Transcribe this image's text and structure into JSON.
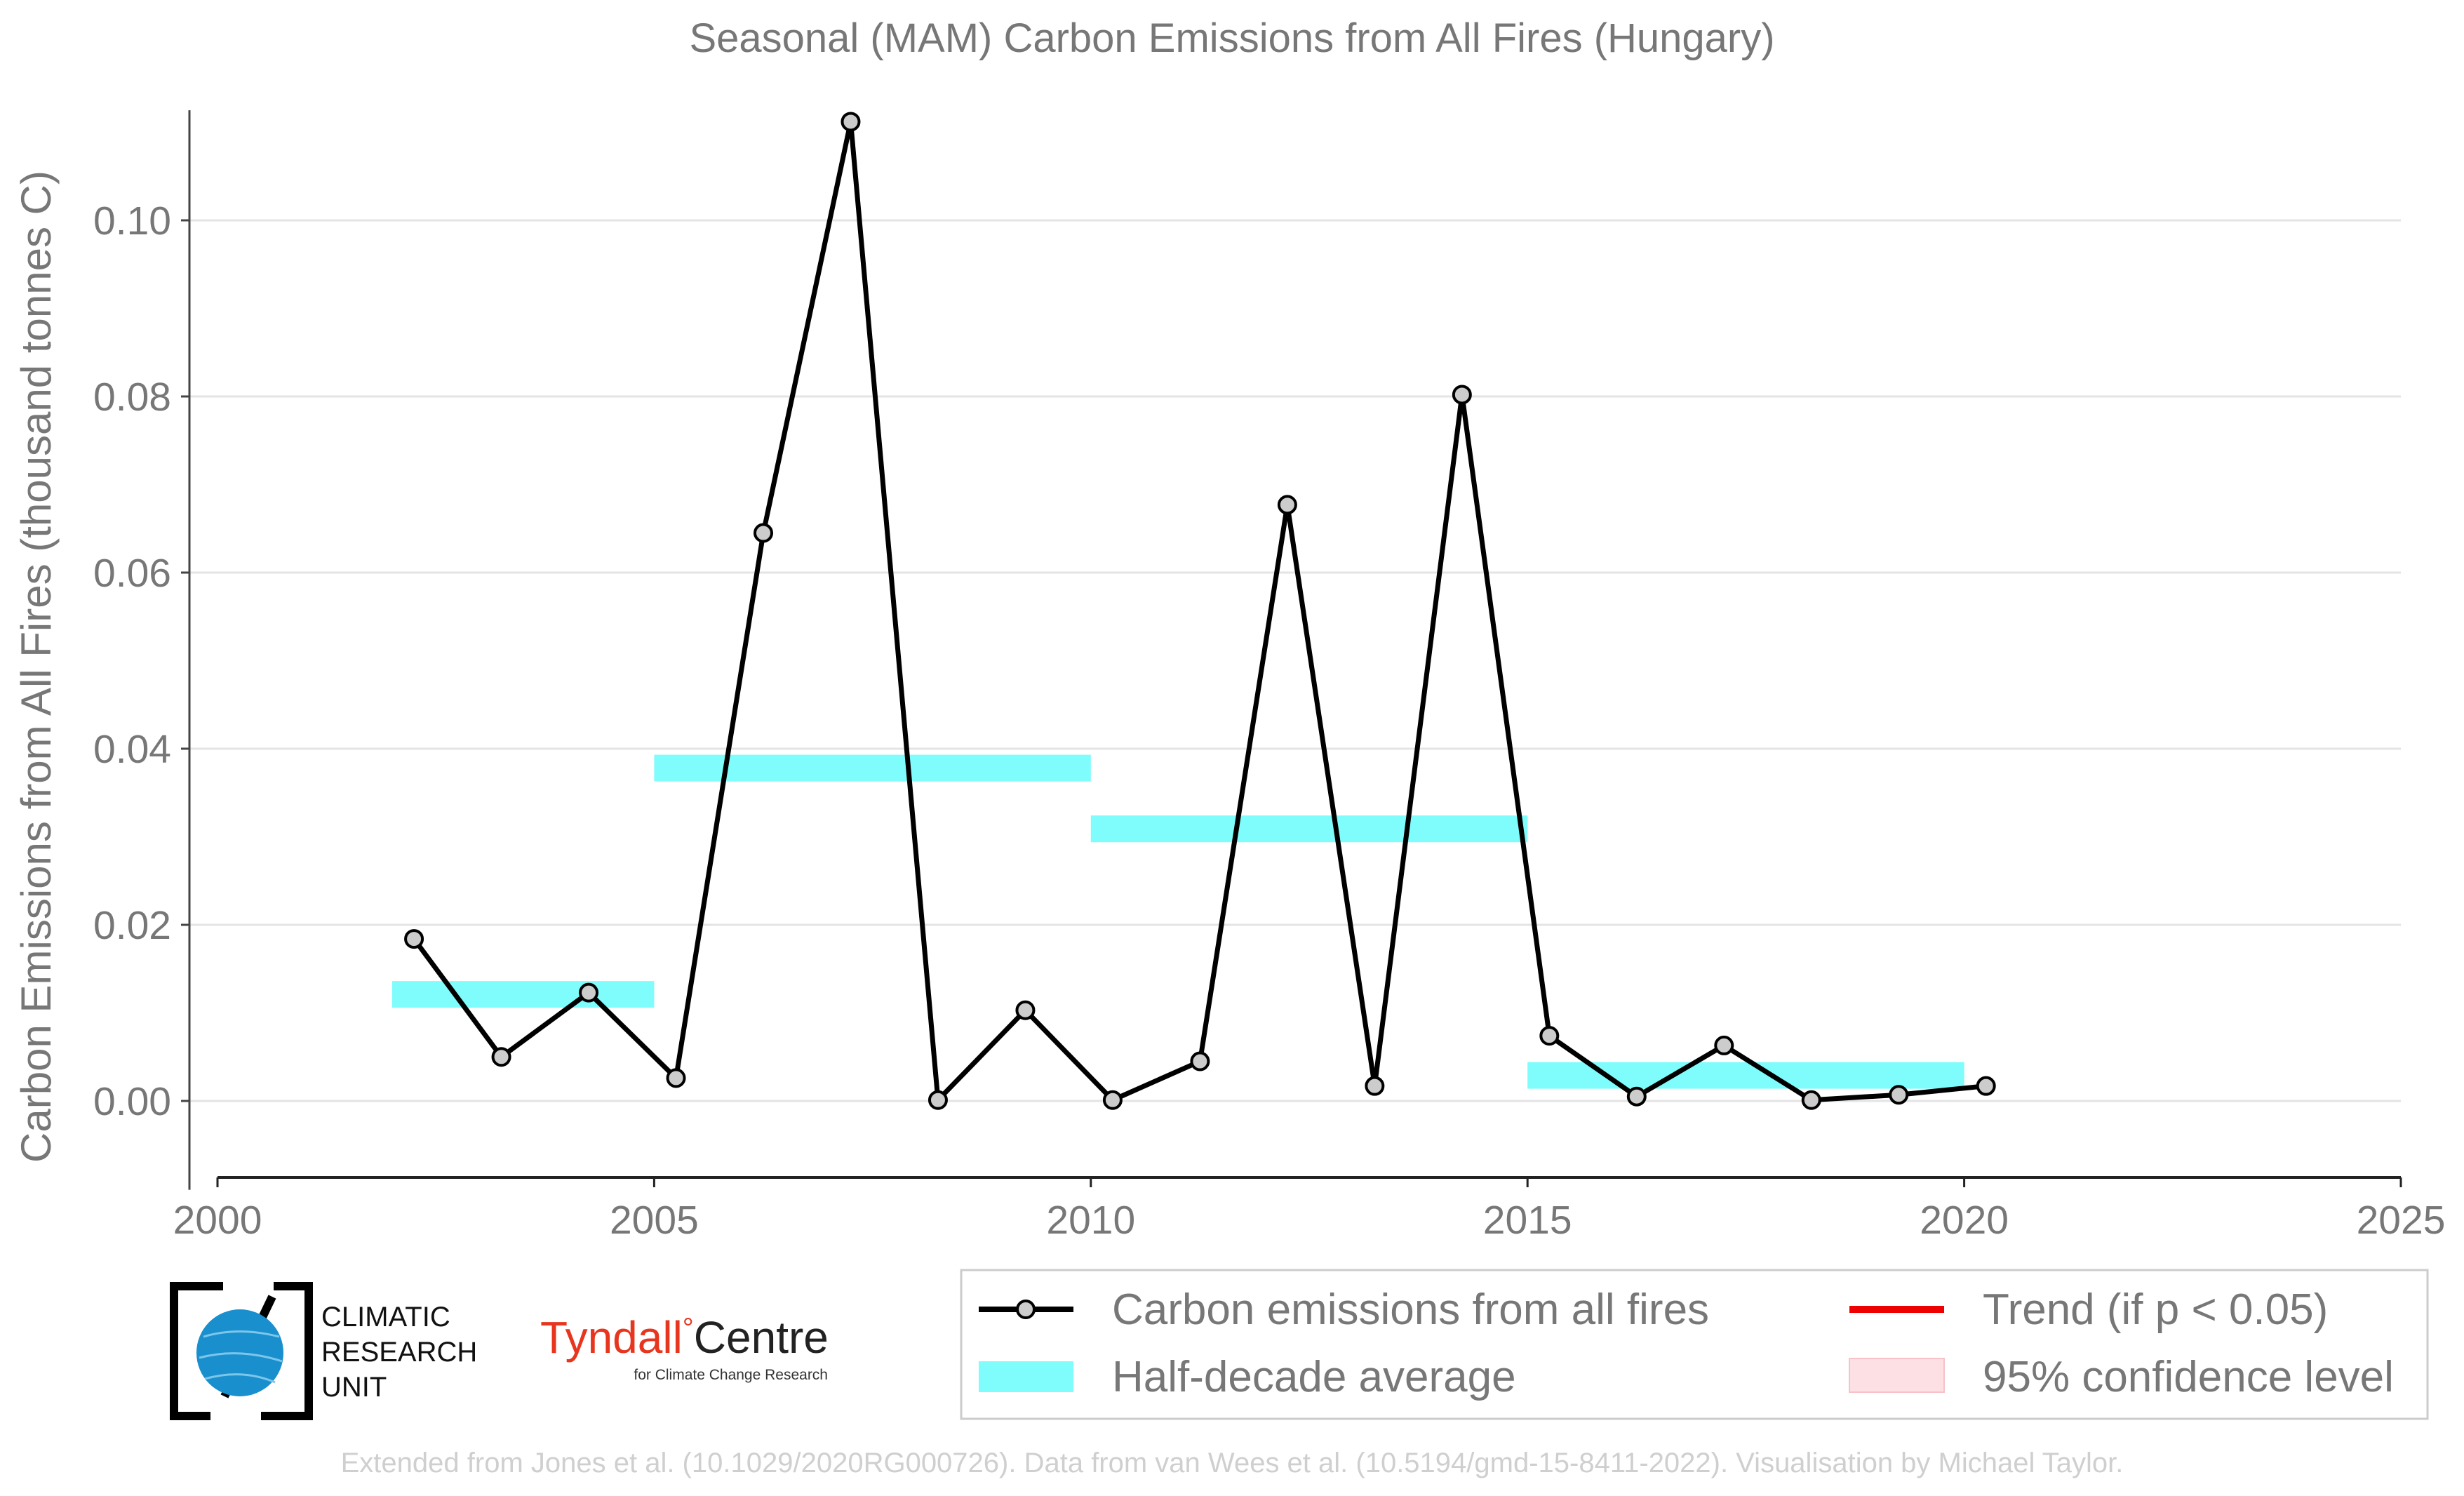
{
  "chart_data": {
    "type": "line",
    "title": "Seasonal (MAM) Carbon Emissions from All Fires (Hungary)",
    "ylabel": "Carbon Emissions from All Fires (thousand tonnes C)",
    "xlabel": "",
    "xlim": [
      2000,
      2025
    ],
    "ylim": [
      -0.0085,
      0.1125
    ],
    "x_ticks": [
      2000,
      2005,
      2010,
      2015,
      2020,
      2025
    ],
    "x_tick_labels": [
      "2000",
      "2005",
      "2010",
      "2015",
      "2020",
      "2025"
    ],
    "y_ticks": [
      0.0,
      0.02,
      0.04,
      0.06,
      0.08,
      0.1
    ],
    "y_tick_labels": [
      "0.00",
      "0.02",
      "0.04",
      "0.06",
      "0.08",
      "0.10"
    ],
    "grid": "horizontal",
    "series": [
      {
        "name": "Carbon emissions from all fires",
        "x": [
          2002.25,
          2003.25,
          2004.25,
          2005.25,
          2006.25,
          2007.25,
          2008.25,
          2009.25,
          2010.25,
          2011.25,
          2012.25,
          2013.25,
          2014.25,
          2015.25,
          2016.25,
          2017.25,
          2018.25,
          2019.25,
          2020.25
        ],
        "values": [
          0.0184,
          0.005,
          0.0123,
          0.0026,
          0.0645,
          0.1112,
          0.0001,
          0.0103,
          0.0001,
          0.0045,
          0.0677,
          0.0017,
          0.0802,
          0.0074,
          0.0005,
          0.0063,
          0.0001,
          0.0007,
          0.0017
        ],
        "color": "#000000",
        "marker_fill": "#cccccc"
      }
    ],
    "half_decade_average": {
      "name": "Half-decade average",
      "color": "#7ffcfc",
      "segments": [
        {
          "x_start": 2002,
          "x_end": 2005,
          "value": 0.0121
        },
        {
          "x_start": 2005,
          "x_end": 2010,
          "value": 0.0378
        },
        {
          "x_start": 2010,
          "x_end": 2015,
          "value": 0.0309
        },
        {
          "x_start": 2015,
          "x_end": 2020,
          "value": 0.0029
        }
      ]
    },
    "legend": {
      "placement": "bottom-right",
      "entries": [
        {
          "label": "Carbon emissions from all fires",
          "kind": "line-marker",
          "color": "#000000"
        },
        {
          "label": "Trend (if p < 0.05)",
          "kind": "line",
          "color": "#ee0000"
        },
        {
          "label": "Half-decade average",
          "kind": "patch",
          "color": "#7ffcfc"
        },
        {
          "label": "95% confidence level",
          "kind": "patch",
          "color": "#fde0e3"
        }
      ]
    }
  },
  "logos": {
    "cru": {
      "lines": [
        "CLIMATIC",
        "RESEARCH",
        "UNIT"
      ]
    },
    "tyndall": {
      "name_part1": "Tyndall",
      "degree": "°",
      "name_part2": "Centre",
      "subtitle": "for Climate Change Research",
      "color_part1": "#e8361e",
      "color_part2": "#222222"
    }
  },
  "credit": "Extended from Jones et al. (10.1029/2020RG000726). Data from van Wees et al. (10.5194/gmd-15-8411-2022). Visualisation by Michael Taylor."
}
